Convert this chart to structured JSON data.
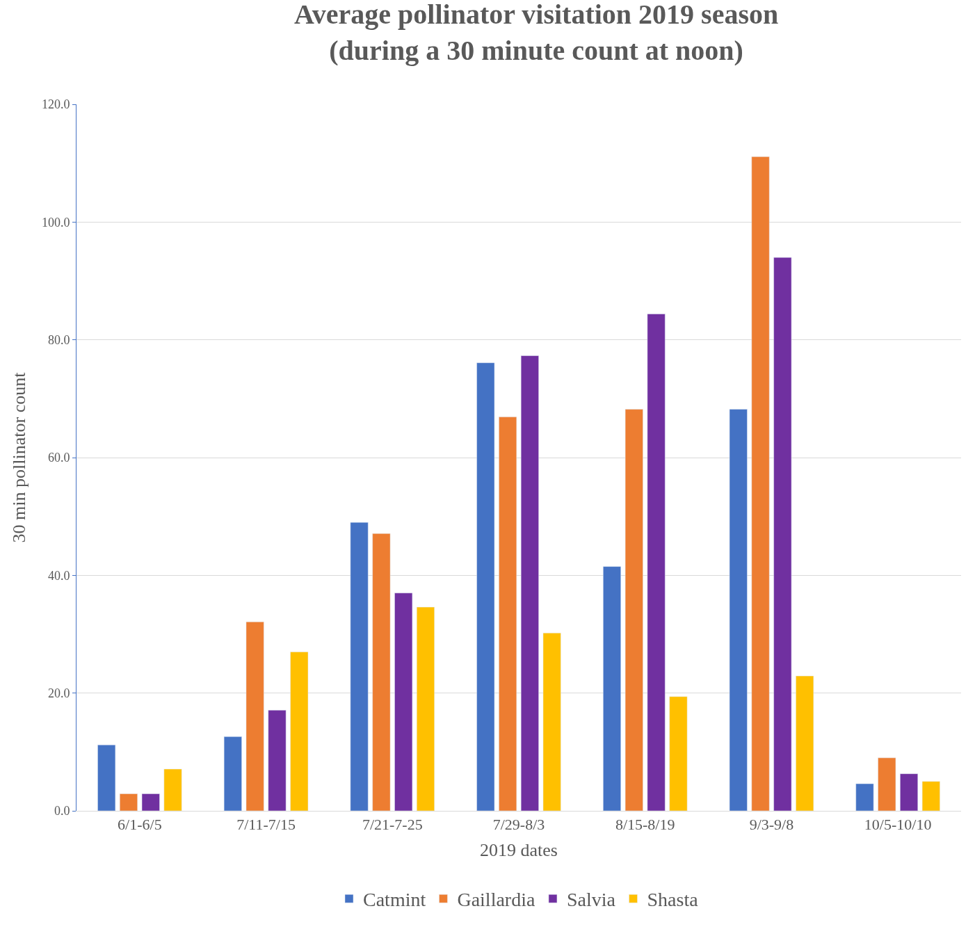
{
  "chart_data": {
    "type": "bar",
    "title": "Average pollinator visitation 2019 season\n(during a 30 minute count at noon)",
    "xlabel": "2019 dates",
    "ylabel": "30 min pollinator count",
    "categories": [
      "6/1-6/5",
      "7/11-7/15",
      "7/21-7-25",
      "7/29-8/3",
      "8/15-8/19",
      "9/3-9/8",
      "10/5-10/10"
    ],
    "series": [
      {
        "name": "Catmint",
        "color": "#4472c4",
        "values": [
          11.2,
          12.6,
          49.0,
          76.1,
          41.5,
          68.2,
          4.6
        ]
      },
      {
        "name": "Gaillardia",
        "color": "#ed7d31",
        "values": [
          2.9,
          32.1,
          47.1,
          66.9,
          68.2,
          111.1,
          9.0
        ]
      },
      {
        "name": "Salvia",
        "color": "#7030a0",
        "values": [
          2.9,
          17.1,
          37.0,
          77.3,
          84.4,
          94.0,
          6.3
        ]
      },
      {
        "name": "Shasta",
        "color": "#ffc000",
        "values": [
          7.1,
          27.0,
          34.6,
          30.2,
          19.4,
          22.9,
          5.0
        ]
      }
    ],
    "ylim": [
      0,
      120
    ],
    "yticks": [
      {
        "value": 0,
        "label": "0.0"
      },
      {
        "value": 20,
        "label": "20.0"
      },
      {
        "value": 40,
        "label": "40.0"
      },
      {
        "value": 60,
        "label": "60.0"
      },
      {
        "value": 80,
        "label": "80.0"
      },
      {
        "value": 100,
        "label": "100.0"
      },
      {
        "value": 120,
        "label": "120.0"
      }
    ],
    "grid": "y",
    "legend": "bottom"
  }
}
